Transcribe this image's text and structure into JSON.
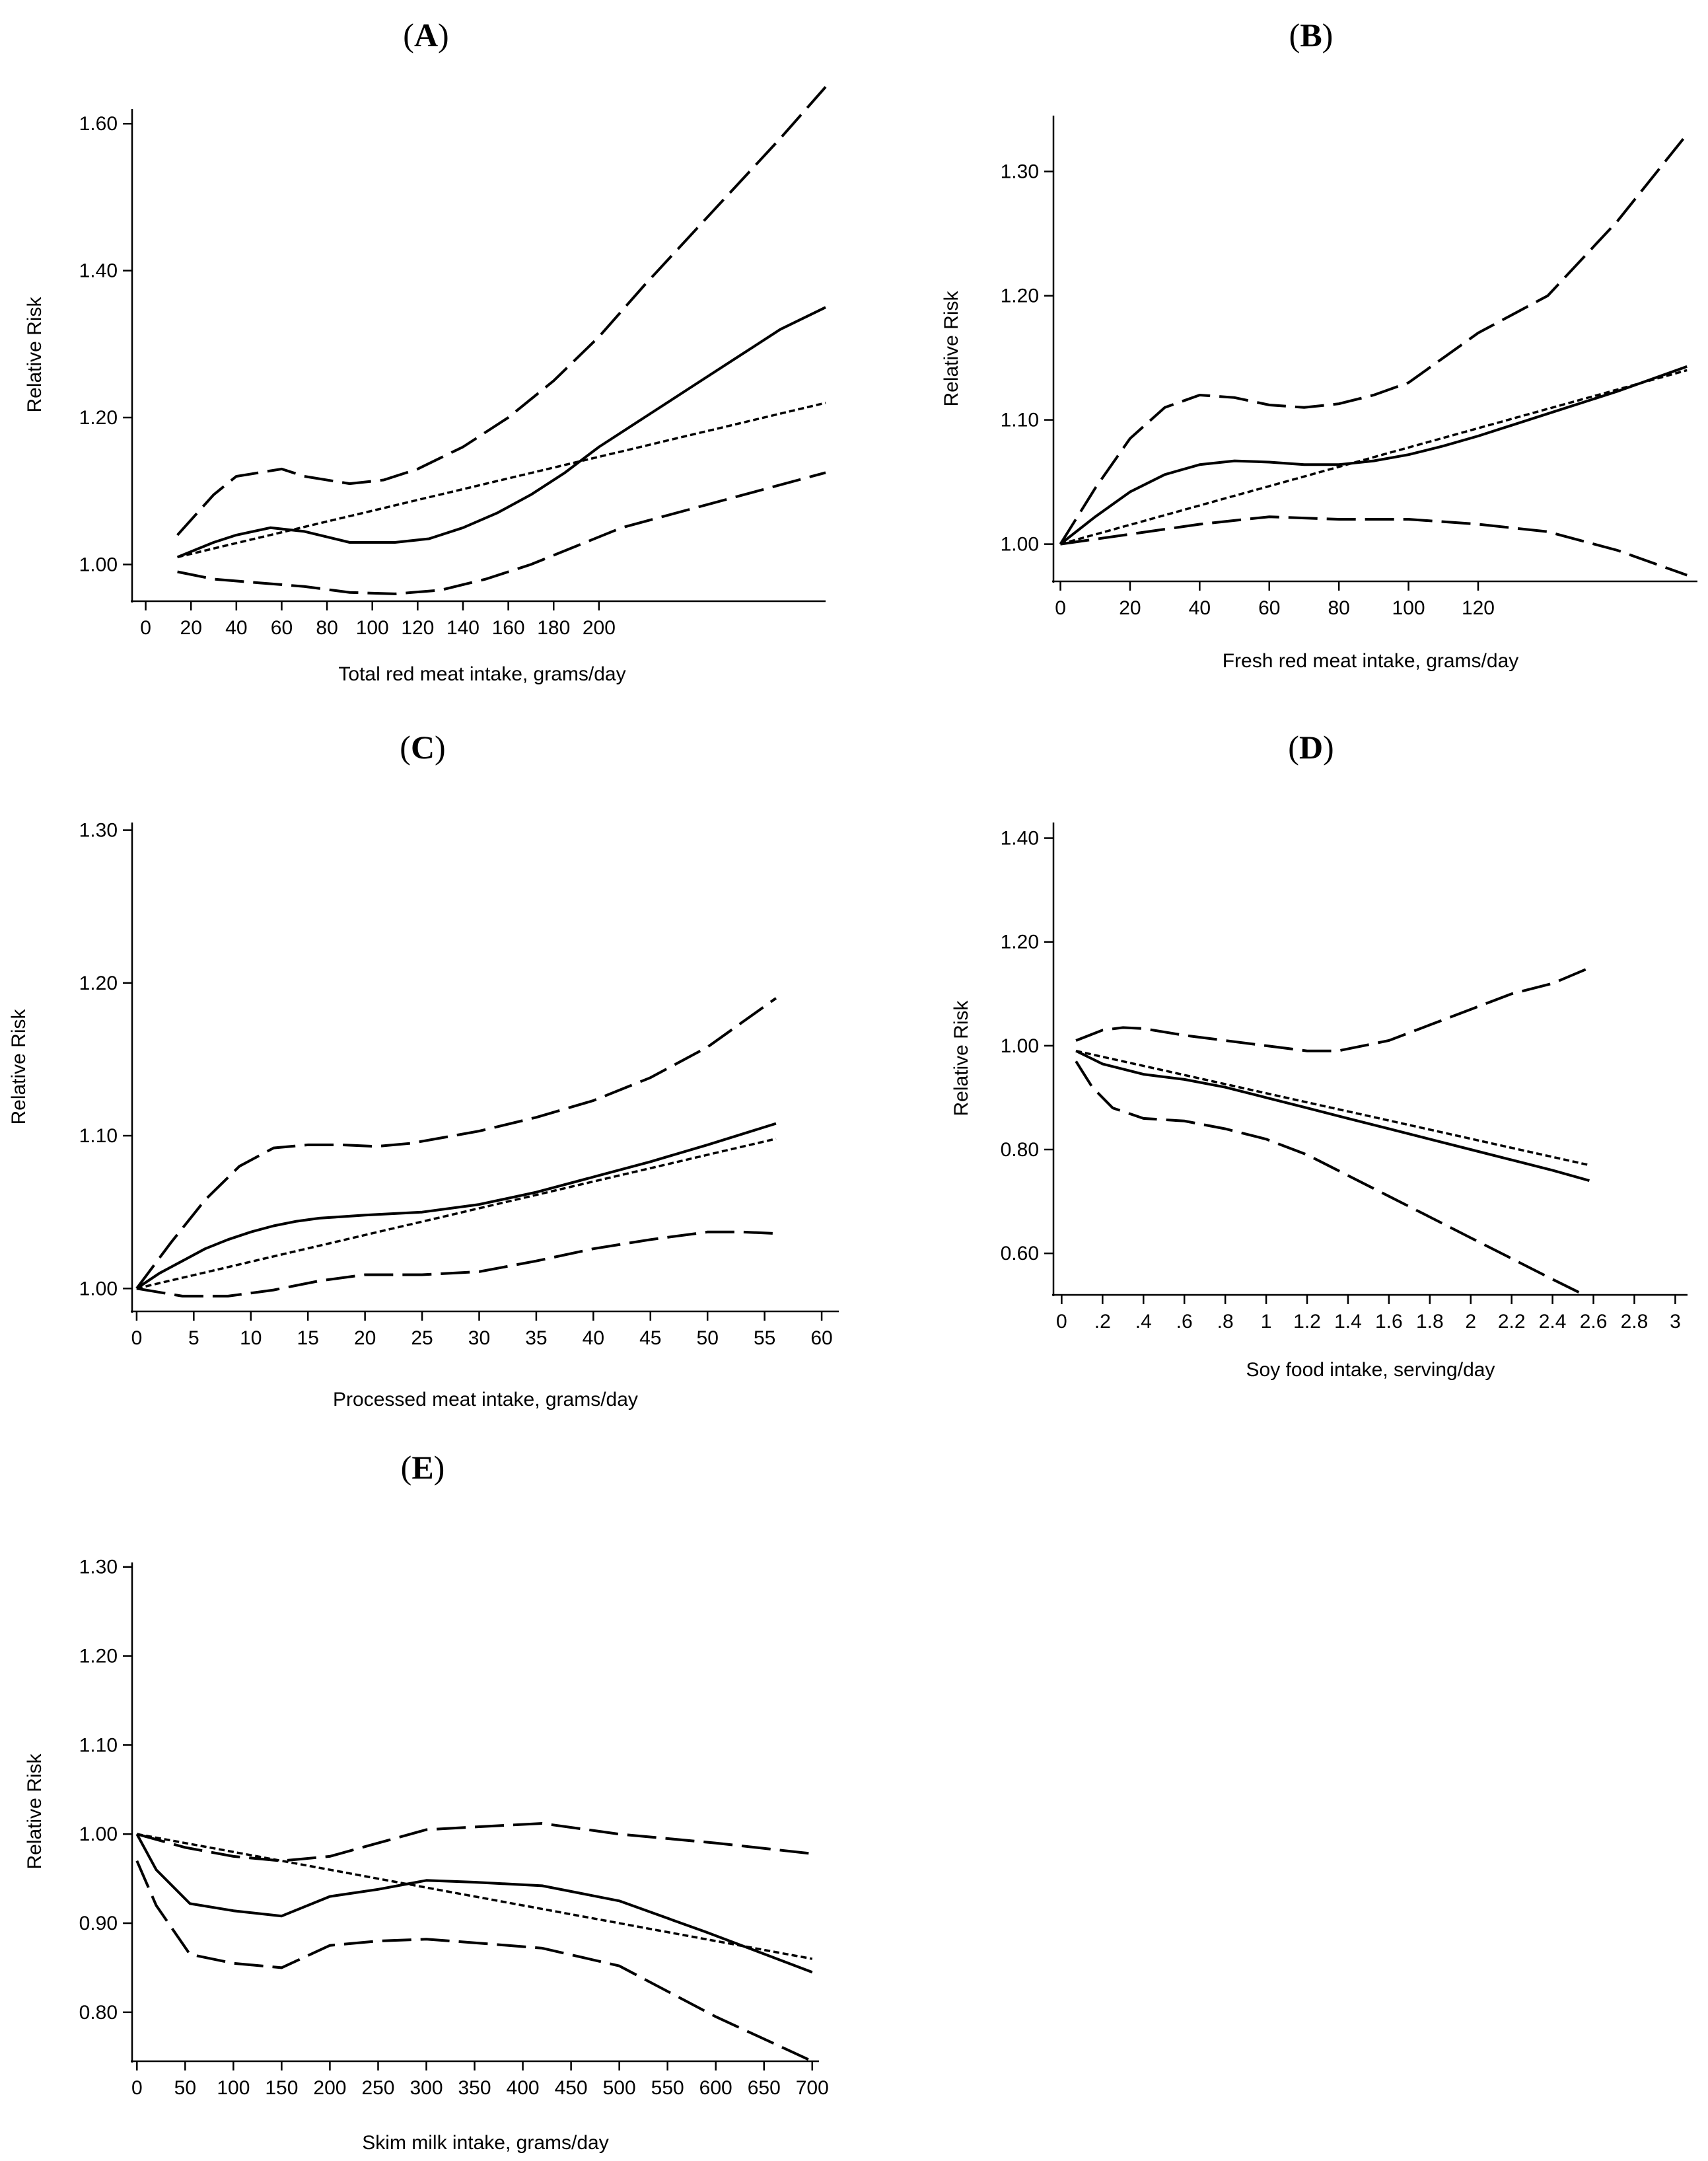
{
  "chart_data": [
    {
      "panel": "A",
      "type": "line",
      "xlabel": "Total red meat intake, grams/day",
      "ylabel": "Relative Risk",
      "x_ticks": [
        0,
        20,
        40,
        60,
        80,
        100,
        120,
        140,
        160,
        180,
        200
      ],
      "x_tick_labels": [
        "0",
        "20",
        "40",
        "60",
        "80",
        "100",
        "120",
        "140",
        "160",
        "180",
        "200"
      ],
      "xlim": [
        -6,
        300
      ],
      "y_ticks": [
        1.0,
        1.2,
        1.4,
        1.6
      ],
      "y_tick_labels": [
        "1.00",
        "1.20",
        "1.40",
        "1.60"
      ],
      "ylim": [
        0.95,
        1.62
      ],
      "series": [
        {
          "name": "spline",
          "style": "solid",
          "x": [
            14,
            30,
            40,
            55,
            70,
            90,
            110,
            125,
            140,
            155,
            170,
            185,
            200,
            220,
            240,
            260,
            280,
            300
          ],
          "y": [
            1.01,
            1.03,
            1.04,
            1.05,
            1.045,
            1.03,
            1.03,
            1.035,
            1.05,
            1.07,
            1.095,
            1.125,
            1.16,
            1.2,
            1.24,
            1.28,
            1.32,
            1.35
          ]
        },
        {
          "name": "upper 95% CI",
          "style": "dashed",
          "x": [
            14,
            30,
            40,
            60,
            70,
            90,
            105,
            120,
            140,
            160,
            180,
            200,
            220,
            250,
            280,
            300
          ],
          "y": [
            1.04,
            1.095,
            1.12,
            1.13,
            1.12,
            1.11,
            1.115,
            1.13,
            1.16,
            1.2,
            1.25,
            1.31,
            1.38,
            1.48,
            1.58,
            1.65
          ]
        },
        {
          "name": "lower 95% CI",
          "style": "dashed",
          "x": [
            14,
            30,
            50,
            70,
            90,
            110,
            130,
            150,
            170,
            190,
            210,
            240,
            270,
            300
          ],
          "y": [
            0.99,
            0.98,
            0.975,
            0.97,
            0.962,
            0.96,
            0.965,
            0.98,
            1.0,
            1.025,
            1.05,
            1.075,
            1.1,
            1.125
          ]
        },
        {
          "name": "linear trend",
          "style": "dotted",
          "x": [
            14,
            300
          ],
          "y": [
            1.01,
            1.22
          ]
        }
      ]
    },
    {
      "panel": "B",
      "type": "line",
      "xlabel": "Fresh red meat intake, grams/day",
      "ylabel": "Relative Risk",
      "x_ticks": [
        0,
        20,
        40,
        60,
        80,
        100,
        120
      ],
      "x_tick_labels": [
        "0",
        "20",
        "40",
        "60",
        "80",
        "100",
        "120"
      ],
      "xlim": [
        -2,
        183
      ],
      "y_ticks": [
        1.0,
        1.1,
        1.2,
        1.3
      ],
      "y_tick_labels": [
        "1.00",
        "1.10",
        "1.20",
        "1.30"
      ],
      "ylim": [
        0.97,
        1.345
      ],
      "series": [
        {
          "name": "spline",
          "style": "solid",
          "x": [
            0,
            10,
            20,
            30,
            40,
            50,
            60,
            70,
            80,
            90,
            100,
            110,
            120,
            140,
            160,
            180
          ],
          "y": [
            1.0,
            1.022,
            1.042,
            1.056,
            1.064,
            1.067,
            1.066,
            1.064,
            1.064,
            1.067,
            1.072,
            1.079,
            1.087,
            1.105,
            1.123,
            1.143
          ]
        },
        {
          "name": "upper 95% CI",
          "style": "dashed",
          "x": [
            0,
            10,
            20,
            30,
            40,
            50,
            60,
            70,
            80,
            90,
            100,
            110,
            120,
            140,
            160,
            180
          ],
          "y": [
            1.0,
            1.045,
            1.085,
            1.11,
            1.12,
            1.118,
            1.112,
            1.11,
            1.113,
            1.12,
            1.13,
            1.15,
            1.17,
            1.2,
            1.26,
            1.33
          ]
        },
        {
          "name": "lower 95% CI",
          "style": "dashed",
          "x": [
            0,
            20,
            40,
            60,
            80,
            100,
            120,
            140,
            160,
            180
          ],
          "y": [
            1.0,
            1.008,
            1.016,
            1.022,
            1.02,
            1.02,
            1.016,
            1.01,
            0.995,
            0.975
          ]
        },
        {
          "name": "linear trend",
          "style": "dotted",
          "x": [
            0,
            180
          ],
          "y": [
            1.0,
            1.14
          ]
        }
      ]
    },
    {
      "panel": "C",
      "type": "line",
      "xlabel": "Processed meat intake, grams/day",
      "ylabel": "Relative Risk",
      "x_ticks": [
        0,
        5,
        10,
        15,
        20,
        25,
        30,
        35,
        40,
        45,
        50,
        55,
        60
      ],
      "x_tick_labels": [
        "0",
        "5",
        "10",
        "15",
        "20",
        "25",
        "30",
        "35",
        "40",
        "45",
        "50",
        "55",
        "60"
      ],
      "xlim": [
        -0.4,
        61.5
      ],
      "y_ticks": [
        1.0,
        1.1,
        1.2,
        1.3
      ],
      "y_tick_labels": [
        "1.00",
        "1.10",
        "1.20",
        "1.30"
      ],
      "ylim": [
        0.985,
        1.305
      ],
      "series": [
        {
          "name": "spline",
          "style": "solid",
          "x": [
            0,
            2,
            4,
            6,
            8,
            10,
            12,
            14,
            16,
            18,
            20,
            25,
            30,
            35,
            40,
            45,
            50,
            56
          ],
          "y": [
            1.0,
            1.01,
            1.018,
            1.026,
            1.032,
            1.037,
            1.041,
            1.044,
            1.046,
            1.047,
            1.048,
            1.05,
            1.055,
            1.063,
            1.073,
            1.083,
            1.094,
            1.108
          ]
        },
        {
          "name": "upper 95% CI",
          "style": "dashed",
          "x": [
            0,
            3,
            6,
            9,
            12,
            15,
            18,
            21,
            24,
            27,
            30,
            35,
            40,
            45,
            50,
            56
          ],
          "y": [
            1.0,
            1.03,
            1.058,
            1.08,
            1.092,
            1.094,
            1.094,
            1.093,
            1.095,
            1.099,
            1.103,
            1.112,
            1.123,
            1.138,
            1.158,
            1.19
          ]
        },
        {
          "name": "lower 95% CI",
          "style": "dashed",
          "x": [
            0,
            4,
            8,
            12,
            16,
            20,
            25,
            30,
            35,
            40,
            45,
            50,
            53,
            56
          ],
          "y": [
            1.0,
            0.995,
            0.995,
            0.999,
            1.005,
            1.009,
            1.009,
            1.011,
            1.018,
            1.026,
            1.032,
            1.037,
            1.037,
            1.036
          ]
        },
        {
          "name": "linear trend",
          "style": "dotted",
          "x": [
            0,
            56
          ],
          "y": [
            1.0,
            1.098
          ]
        }
      ]
    },
    {
      "panel": "D",
      "type": "line",
      "xlabel": "Soy food intake, serving/day",
      "ylabel": "Relative Risk",
      "x_ticks": [
        0,
        0.2,
        0.4,
        0.6,
        0.8,
        1,
        1.2,
        1.4,
        1.6,
        1.8,
        2,
        2.2,
        2.4,
        2.6,
        2.8,
        3
      ],
      "x_tick_labels": [
        "0",
        ".2",
        ".4",
        ".6",
        ".8",
        "1",
        "1.2",
        "1.4",
        "1.6",
        "1.8",
        "2",
        "2.2",
        "2.4",
        "2.6",
        "2.8",
        "3"
      ],
      "xlim": [
        -0.04,
        3.06
      ],
      "y_ticks": [
        0.6,
        0.8,
        1.0,
        1.2,
        1.4
      ],
      "y_tick_labels": [
        "0.60",
        "0.80",
        "1.00",
        "1.20",
        "1.40"
      ],
      "ylim": [
        0.52,
        1.43
      ],
      "series": [
        {
          "name": "spline",
          "style": "solid",
          "x": [
            0.07,
            0.2,
            0.4,
            0.6,
            0.8,
            1.0,
            1.2,
            1.4,
            1.6,
            1.8,
            2.0,
            2.2,
            2.4,
            2.58
          ],
          "y": [
            0.99,
            0.965,
            0.945,
            0.935,
            0.92,
            0.9,
            0.88,
            0.86,
            0.84,
            0.82,
            0.8,
            0.78,
            0.76,
            0.74
          ]
        },
        {
          "name": "upper 95% CI",
          "style": "dashed",
          "x": [
            0.07,
            0.2,
            0.3,
            0.4,
            0.6,
            0.8,
            1.0,
            1.2,
            1.35,
            1.6,
            1.8,
            2.0,
            2.2,
            2.4,
            2.58
          ],
          "y": [
            1.01,
            1.03,
            1.035,
            1.033,
            1.02,
            1.01,
            1.0,
            0.99,
            0.99,
            1.01,
            1.04,
            1.07,
            1.1,
            1.12,
            1.15
          ]
        },
        {
          "name": "lower 95% CI",
          "style": "dashed",
          "x": [
            0.07,
            0.15,
            0.25,
            0.4,
            0.6,
            0.8,
            1.0,
            1.2,
            1.4,
            1.6,
            1.8,
            2.0,
            2.2,
            2.4,
            2.58
          ],
          "y": [
            0.97,
            0.92,
            0.88,
            0.86,
            0.855,
            0.84,
            0.82,
            0.79,
            0.75,
            0.71,
            0.67,
            0.63,
            0.59,
            0.55,
            0.515
          ]
        },
        {
          "name": "linear trend",
          "style": "dotted",
          "x": [
            0.07,
            2.58
          ],
          "y": [
            0.99,
            0.77
          ]
        }
      ]
    },
    {
      "panel": "E",
      "type": "line",
      "xlabel": "Skim milk intake, grams/day",
      "ylabel": "Relative Risk",
      "x_ticks": [
        0,
        50,
        100,
        150,
        200,
        250,
        300,
        350,
        400,
        450,
        500,
        550,
        600,
        650,
        700
      ],
      "x_tick_labels": [
        "0",
        "50",
        "100",
        "150",
        "200",
        "250",
        "300",
        "350",
        "400",
        "450",
        "500",
        "550",
        "600",
        "650",
        "700"
      ],
      "xlim": [
        -5,
        707
      ],
      "y_ticks": [
        0.8,
        0.9,
        1.0,
        1.1,
        1.2,
        1.3
      ],
      "y_tick_labels": [
        "0.80",
        "0.90",
        "1.00",
        "1.10",
        "1.20",
        "1.30"
      ],
      "ylim": [
        0.745,
        1.305
      ],
      "series": [
        {
          "name": "spline",
          "style": "solid",
          "x": [
            0,
            20,
            55,
            100,
            150,
            200,
            250,
            300,
            350,
            420,
            500,
            590,
            700
          ],
          "y": [
            1.0,
            0.96,
            0.922,
            0.914,
            0.908,
            0.93,
            0.938,
            0.948,
            0.946,
            0.942,
            0.925,
            0.89,
            0.845
          ]
        },
        {
          "name": "upper 95% CI",
          "style": "dashed",
          "x": [
            0,
            50,
            100,
            150,
            200,
            250,
            300,
            350,
            420,
            500,
            600,
            700
          ],
          "y": [
            1.0,
            0.985,
            0.975,
            0.97,
            0.975,
            0.99,
            1.005,
            1.008,
            1.012,
            1.0,
            0.99,
            0.978
          ]
        },
        {
          "name": "lower 95% CI",
          "style": "dashed",
          "x": [
            0,
            20,
            55,
            100,
            150,
            200,
            250,
            300,
            350,
            420,
            500,
            600,
            700
          ],
          "y": [
            0.97,
            0.92,
            0.865,
            0.855,
            0.85,
            0.875,
            0.88,
            0.882,
            0.878,
            0.872,
            0.852,
            0.795,
            0.745
          ]
        },
        {
          "name": "linear trend",
          "style": "dotted",
          "x": [
            0,
            700
          ],
          "y": [
            1.0,
            0.86
          ]
        }
      ]
    }
  ]
}
